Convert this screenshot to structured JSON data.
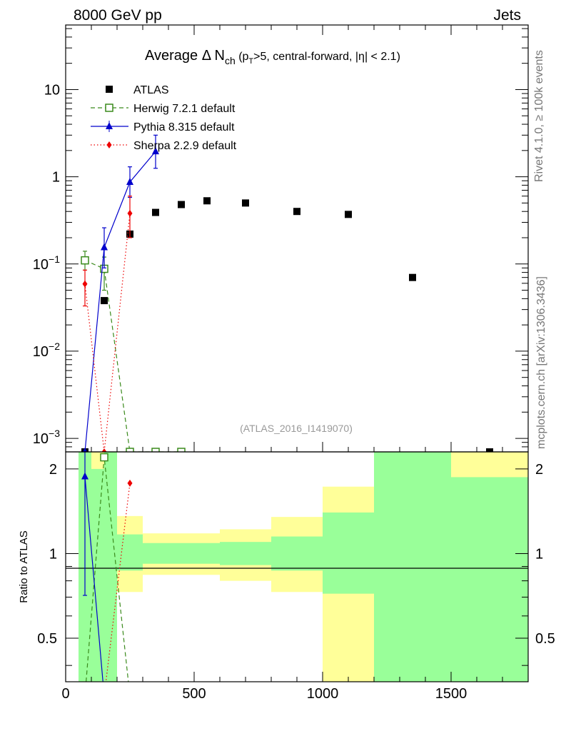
{
  "header": {
    "left": "8000 GeV pp",
    "right": "Jets"
  },
  "side_labels": {
    "rivet": "Rivet 4.1.0, ≥ 100k events",
    "mcplots": "mcplots.cern.ch [arXiv:1306.3436]"
  },
  "chart_data": {
    "type": "scatter",
    "title": "Average Δ N",
    "title_sub": "ch",
    "title_rest_a": " (p",
    "title_rest_sub": "T",
    "title_rest_b": ">5, central-forward, |η| < 2.1)",
    "analysis_id": "(ATLAS_2016_I1419070)",
    "ratio_ylabel": "Ratio to ATLAS",
    "xlim": [
      0,
      1800
    ],
    "ylim_main": [
      0.0007,
      55
    ],
    "ylim_ratio": [
      0.35,
      2.3
    ],
    "x_ticks": [
      0,
      500,
      1000,
      1500
    ],
    "x_tick_labels": [
      "0",
      "500",
      "1000",
      "1500"
    ],
    "main_y_ticks": [
      {
        "value": 10,
        "base": "10",
        "exp": ""
      },
      {
        "value": 1,
        "base": "1",
        "exp": ""
      },
      {
        "value": 0.1,
        "base": "10",
        "exp": "−1"
      },
      {
        "value": 0.01,
        "base": "10",
        "exp": "−2"
      },
      {
        "value": 0.001,
        "base": "10",
        "exp": "−3"
      }
    ],
    "ratio_y_ticks": [
      {
        "value": 2,
        "label": "2"
      },
      {
        "value": 1,
        "label": "1"
      },
      {
        "value": 0.5,
        "label": "0.5"
      }
    ],
    "bins": [
      {
        "lo": 50,
        "hi": 100,
        "x": 75
      },
      {
        "lo": 100,
        "hi": 200,
        "x": 150
      },
      {
        "lo": 200,
        "hi": 300,
        "x": 250
      },
      {
        "lo": 300,
        "hi": 400,
        "x": 350
      },
      {
        "lo": 400,
        "hi": 600,
        "x": 450
      },
      {
        "lo": 600,
        "hi": 800,
        "x": 550
      },
      {
        "lo": 800,
        "hi": 1000,
        "x": 700
      },
      {
        "lo": 1000,
        "hi": 1200,
        "x": 900
      },
      {
        "lo": 1200,
        "hi": 1500,
        "x": 1100
      },
      {
        "lo": 1500,
        "hi": 1800,
        "x": 1350
      }
    ],
    "bands": [
      {
        "lo": 50,
        "hi": 100,
        "green": [
          0.3,
          2.3
        ],
        "yellow": [
          0.3,
          2.3
        ]
      },
      {
        "lo": 100,
        "hi": 150,
        "green": [
          0.3,
          2.0
        ],
        "yellow": [
          0.3,
          2.3
        ]
      },
      {
        "lo": 150,
        "hi": 200,
        "green": [
          0.3,
          2.3
        ],
        "yellow": [
          0.3,
          2.3
        ]
      },
      {
        "lo": 200,
        "hi": 300,
        "green": [
          0.87,
          1.17
        ],
        "yellow": [
          0.73,
          1.36
        ]
      },
      {
        "lo": 300,
        "hi": 600,
        "green": [
          0.92,
          1.09
        ],
        "yellow": [
          0.84,
          1.18
        ]
      },
      {
        "lo": 600,
        "hi": 800,
        "green": [
          0.91,
          1.1
        ],
        "yellow": [
          0.8,
          1.22
        ]
      },
      {
        "lo": 800,
        "hi": 1000,
        "green": [
          0.87,
          1.15
        ],
        "yellow": [
          0.73,
          1.35
        ]
      },
      {
        "lo": 1000,
        "hi": 1200,
        "green": [
          0.72,
          1.4
        ],
        "yellow": [
          0.3,
          1.73
        ]
      },
      {
        "lo": 1200,
        "hi": 1500,
        "green": [
          0.3,
          2.3
        ],
        "yellow": [
          0.3,
          2.3
        ]
      },
      {
        "lo": 1500,
        "hi": 1800,
        "green": [
          0.3,
          1.87
        ],
        "yellow": [
          0.3,
          2.3
        ]
      }
    ],
    "series": [
      {
        "name": "ATLAS",
        "color": "#000000",
        "marker": "square",
        "points": [
          {
            "x": 75,
            "y": 0.0007
          },
          {
            "x": 150,
            "y": 0.038
          },
          {
            "x": 250,
            "y": 0.22
          },
          {
            "x": 350,
            "y": 0.39
          },
          {
            "x": 450,
            "y": 0.48
          },
          {
            "x": 550,
            "y": 0.53
          },
          {
            "x": 700,
            "y": 0.5
          },
          {
            "x": 900,
            "y": 0.4
          },
          {
            "x": 1100,
            "y": 0.37
          },
          {
            "x": 1350,
            "y": 0.07
          },
          {
            "x": 1650,
            "y": 0.0007
          }
        ]
      },
      {
        "name": "Herwig 7.2.1 default",
        "color": "#3a8a1c",
        "marker": "open-square",
        "dash": "6,4",
        "points": [
          {
            "x": 75,
            "y": 0.11,
            "lo": 0.085,
            "hi": 0.14
          },
          {
            "x": 150,
            "y": 0.088,
            "lo": 0.05,
            "hi": 0.12
          },
          {
            "x": 250,
            "y": 0.0007
          },
          {
            "x": 350,
            "y": 0.0007
          },
          {
            "x": 450,
            "y": 0.0007
          }
        ],
        "ratio": [
          {
            "x": 150,
            "y": 2.2
          }
        ]
      },
      {
        "name": "Pythia 8.315 default",
        "color": "#0000cc",
        "marker": "triangle",
        "dash": "",
        "points": [
          {
            "x": 75,
            "y": 0.0007
          },
          {
            "x": 150,
            "y": 0.155,
            "lo": 0.09,
            "hi": 0.26
          },
          {
            "x": 250,
            "y": 0.87,
            "lo": 0.58,
            "hi": 1.3
          },
          {
            "x": 350,
            "y": 1.95,
            "lo": 1.25,
            "hi": 3.0
          }
        ],
        "ratio": [
          {
            "x": 75,
            "y": 1.88,
            "lo": 0.71,
            "hi": 2.3
          }
        ]
      },
      {
        "name": "Sherpa 2.2.9 default",
        "color": "#ee0000",
        "marker": "diamond",
        "dash": "1.5,3",
        "points": [
          {
            "x": 75,
            "y": 0.059,
            "lo": 0.033,
            "hi": 0.085
          },
          {
            "x": 150,
            "y": 0.0007
          },
          {
            "x": 250,
            "y": 0.38,
            "lo": 0.2,
            "hi": 0.6
          }
        ],
        "ratio": [
          {
            "x": 250,
            "y": 1.78
          }
        ]
      }
    ]
  }
}
